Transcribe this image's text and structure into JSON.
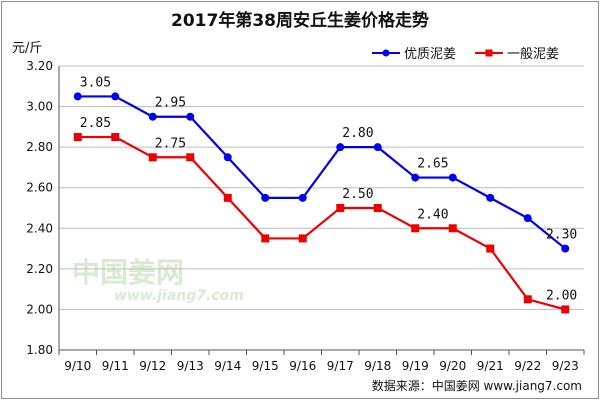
{
  "chart_data": {
    "type": "line",
    "title": "2017年第38周安丘生姜价格走势",
    "ylabel": "元/斤",
    "ylim": [
      1.8,
      3.2
    ],
    "yticks": [
      "1.80",
      "2.00",
      "2.20",
      "2.40",
      "2.60",
      "2.80",
      "3.00",
      "3.20"
    ],
    "ytick_values": [
      1.8,
      2.0,
      2.2,
      2.4,
      2.6,
      2.8,
      3.0,
      3.2
    ],
    "categories": [
      "9/10",
      "9/11",
      "9/12",
      "9/13",
      "9/14",
      "9/15",
      "9/16",
      "9/17",
      "9/18",
      "9/19",
      "9/20",
      "9/21",
      "9/22",
      "9/23"
    ],
    "grid": "horizontal",
    "legend": "top-right",
    "series": [
      {
        "name": "优质泥姜",
        "color": "#0000ee",
        "marker": "circle",
        "values": [
          3.05,
          3.05,
          2.95,
          2.95,
          2.75,
          2.55,
          2.55,
          2.8,
          2.8,
          2.65,
          2.65,
          2.55,
          2.45,
          2.3
        ],
        "labels": [
          {
            "index": 0,
            "text": "3.05"
          },
          {
            "index": 2,
            "text": "2.95"
          },
          {
            "index": 7,
            "text": "2.80"
          },
          {
            "index": 9,
            "text": "2.65"
          },
          {
            "index": 13,
            "text": "2.30"
          }
        ]
      },
      {
        "name": "一般泥姜",
        "color": "#ee0000",
        "marker": "square",
        "values": [
          2.85,
          2.85,
          2.75,
          2.75,
          2.55,
          2.35,
          2.35,
          2.5,
          2.5,
          2.4,
          2.4,
          2.3,
          2.05,
          2.0
        ],
        "labels": [
          {
            "index": 0,
            "text": "2.85"
          },
          {
            "index": 2,
            "text": "2.75"
          },
          {
            "index": 7,
            "text": "2.50"
          },
          {
            "index": 9,
            "text": "2.40"
          },
          {
            "index": 13,
            "text": "2.00"
          }
        ]
      }
    ],
    "source": "数据来源：中国姜网 www.jiang7.com",
    "watermark": {
      "cn": "中国姜网",
      "url": "www.jiang7.com"
    }
  }
}
